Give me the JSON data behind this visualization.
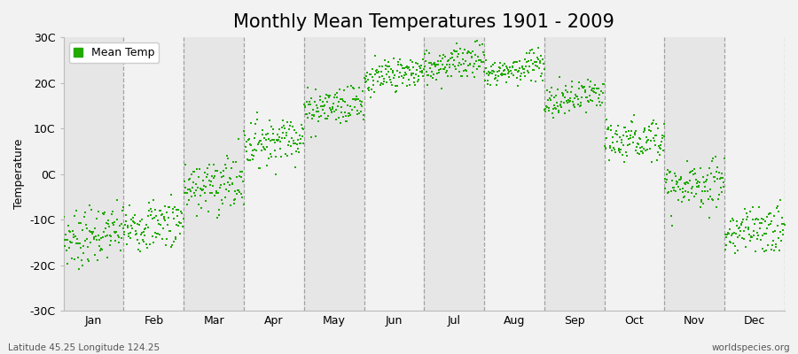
{
  "title": "Monthly Mean Temperatures 1901 - 2009",
  "ylabel": "Temperature",
  "subtitle_left": "Latitude 45.25 Longitude 124.25",
  "subtitle_right": "worldspecies.org",
  "legend_label": "Mean Temp",
  "months": [
    "Jan",
    "Feb",
    "Mar",
    "Apr",
    "May",
    "Jun",
    "Jul",
    "Aug",
    "Sep",
    "Oct",
    "Nov",
    "Dec"
  ],
  "ylim": [
    -30,
    30
  ],
  "yticks": [
    -30,
    -20,
    -10,
    0,
    10,
    20,
    30
  ],
  "ytick_labels": [
    "-30C",
    "-20C",
    "-10C",
    "0C",
    "10C",
    "20C",
    "30C"
  ],
  "dot_color": "#22aa00",
  "dot_size": 4,
  "background_color": "#f2f2f2",
  "plot_bg_color": "#f2f2f2",
  "band_light": "#f2f2f2",
  "band_dark": "#e6e6e6",
  "dashed_line_color": "#999999",
  "years": 109,
  "start_year": 1901,
  "end_year": 2009,
  "monthly_means": [
    -14.5,
    -12.0,
    -3.5,
    6.5,
    14.0,
    20.5,
    23.5,
    22.0,
    15.5,
    6.5,
    -3.5,
    -13.5
  ],
  "monthly_stds": [
    3.0,
    2.8,
    3.2,
    2.5,
    2.2,
    2.0,
    1.8,
    1.8,
    2.0,
    2.3,
    2.5,
    2.8
  ],
  "trend_slope": [
    0.02,
    0.02,
    0.02,
    0.02,
    0.02,
    0.02,
    0.02,
    0.02,
    0.02,
    0.02,
    0.02,
    0.02
  ],
  "title_fontsize": 15,
  "axis_fontsize": 9,
  "tick_fontsize": 9
}
